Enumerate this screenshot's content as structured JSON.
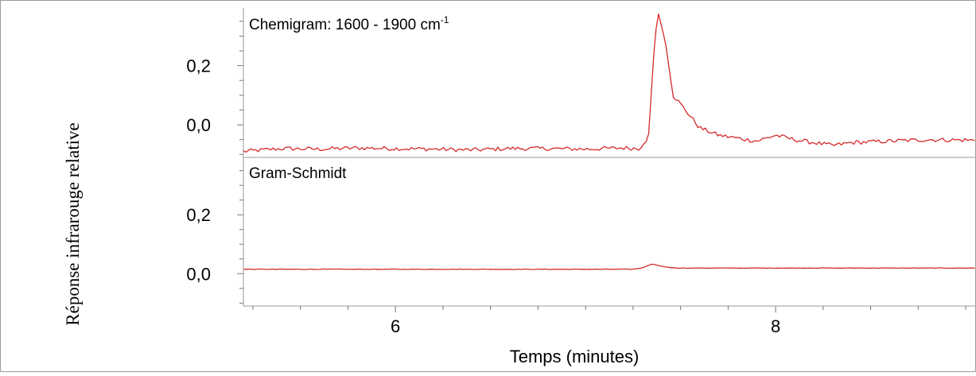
{
  "chart_data": {
    "type": "line",
    "xlabel": "Temps (minutes)",
    "ylabel": "Réponse infrarouge relative",
    "xlim": [
      5.2,
      9.05
    ],
    "x_ticks": [
      {
        "value": 6,
        "label": "6"
      },
      {
        "value": 8,
        "label": "8"
      }
    ],
    "x_minor_step": 0.25,
    "line_color": "#d42a2a",
    "panels": [
      {
        "title_main": "Chemigram: 1600 - 1900 cm",
        "title_sup": "-1",
        "ylim": [
          -0.11,
          0.395
        ],
        "y_ticks": [
          {
            "value": 0.2,
            "label": "0,2"
          },
          {
            "value": 0.0,
            "label": "0,0"
          }
        ],
        "y_minor_step": 0.05,
        "noise": 0.007,
        "series": {
          "x": [
            5.2,
            5.4,
            5.6,
            5.8,
            6.0,
            6.2,
            6.4,
            6.6,
            6.8,
            7.0,
            7.2,
            7.28,
            7.33,
            7.36,
            7.38,
            7.42,
            7.46,
            7.5,
            7.55,
            7.6,
            7.7,
            7.8,
            7.9,
            8.0,
            8.1,
            8.2,
            8.3,
            8.4,
            8.6,
            8.8,
            9.05
          ],
          "y": [
            -0.09,
            -0.08,
            -0.082,
            -0.078,
            -0.08,
            -0.082,
            -0.085,
            -0.08,
            -0.08,
            -0.082,
            -0.078,
            -0.08,
            -0.05,
            0.25,
            0.385,
            0.28,
            0.1,
            0.07,
            0.03,
            -0.01,
            -0.035,
            -0.045,
            -0.055,
            -0.035,
            -0.05,
            -0.06,
            -0.07,
            -0.06,
            -0.055,
            -0.05,
            -0.052
          ]
        }
      },
      {
        "title_main": "Gram-Schmidt",
        "title_sup": "",
        "ylim": [
          -0.11,
          0.395
        ],
        "y_ticks": [
          {
            "value": 0.2,
            "label": "0,2"
          },
          {
            "value": 0.0,
            "label": "0,0"
          }
        ],
        "y_minor_step": 0.05,
        "noise": 0.0008,
        "series": {
          "x": [
            5.2,
            6.0,
            7.0,
            7.25,
            7.3,
            7.35,
            7.4,
            7.45,
            7.5,
            8.0,
            9.05
          ],
          "y": [
            0.015,
            0.015,
            0.015,
            0.015,
            0.02,
            0.033,
            0.025,
            0.02,
            0.019,
            0.019,
            0.019
          ]
        }
      }
    ]
  }
}
